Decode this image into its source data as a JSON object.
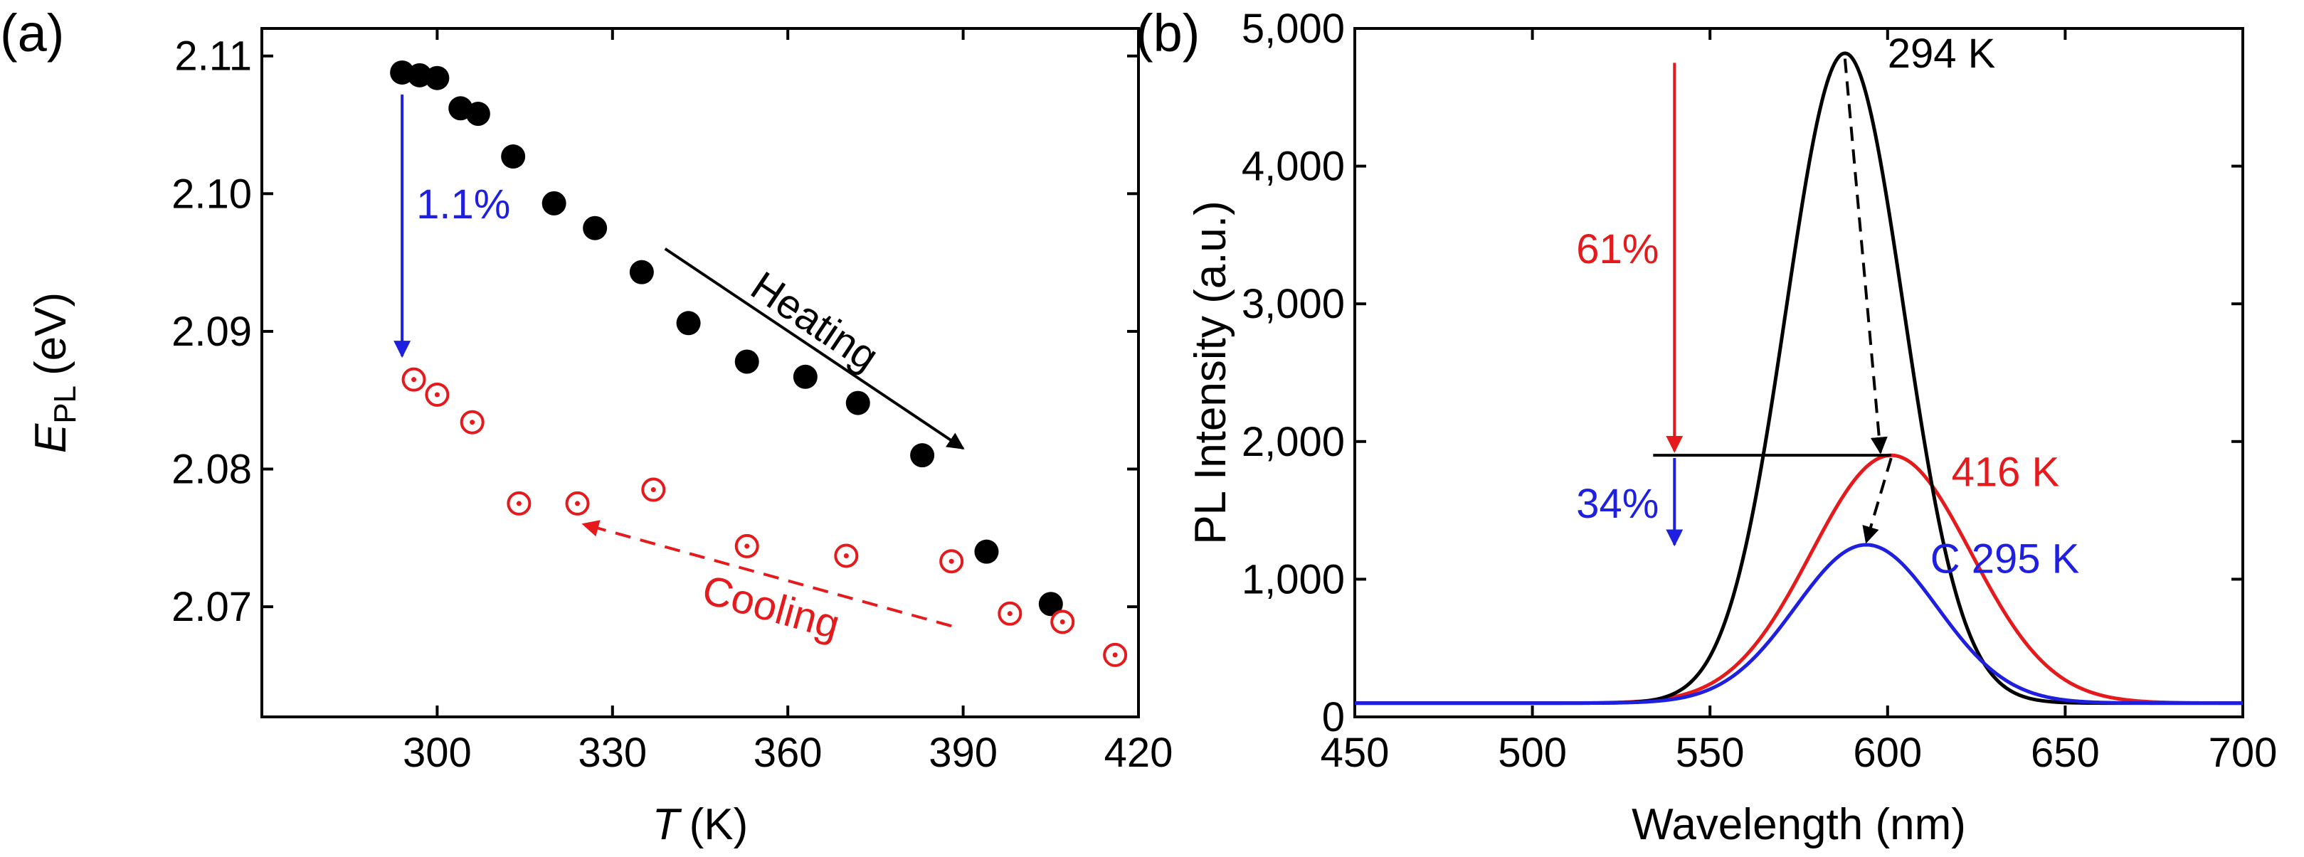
{
  "chart_data": [
    {
      "panel": "(a)",
      "type": "scatter",
      "xlabel": "T",
      "xlabel_unit": "(K)",
      "ylabel": "E",
      "ylabel_sub": "PL",
      "ylabel_unit": "(eV)",
      "xlim": [
        270,
        420
      ],
      "ylim": [
        2.062,
        2.112
      ],
      "xticks": [
        "300",
        "330",
        "360",
        "390",
        "420"
      ],
      "xtick_values": [
        300,
        330,
        360,
        390,
        420
      ],
      "yticks": [
        "2.07",
        "2.08",
        "2.09",
        "2.10",
        "2.11"
      ],
      "ytick_values": [
        2.07,
        2.08,
        2.09,
        2.1,
        2.11
      ],
      "series": [
        {
          "name": "Heating",
          "marker": "filled-circle",
          "color": "#000000",
          "x": [
            294,
            297,
            300,
            304,
            307,
            313,
            320,
            327,
            335,
            343,
            353,
            363,
            372,
            383,
            394,
            405
          ],
          "y": [
            2.1088,
            2.1086,
            2.1084,
            2.1062,
            2.1058,
            2.1027,
            2.0993,
            2.0975,
            2.0943,
            2.0906,
            2.0878,
            2.0867,
            2.0848,
            2.081,
            2.074,
            2.0702
          ]
        },
        {
          "name": "Cooling",
          "marker": "open-circle-dot",
          "color": "#e41a1c",
          "x": [
            296,
            300,
            306,
            314,
            324,
            337,
            353,
            370,
            388,
            398,
            407,
            416
          ],
          "y": [
            2.0865,
            2.0854,
            2.0834,
            2.0775,
            2.0775,
            2.0785,
            2.0744,
            2.0737,
            2.0733,
            2.0695,
            2.0689,
            2.0665
          ]
        }
      ],
      "annotations": [
        {
          "text": "1.1%",
          "color": "#1f1fe0",
          "arrow_from": [
            294,
            2.1072
          ],
          "arrow_to": [
            294,
            2.0882
          ]
        },
        {
          "text": "Heating",
          "color": "#000000",
          "arrow_from": [
            339,
            2.096
          ],
          "arrow_to": [
            390,
            2.0815
          ]
        },
        {
          "text": "Cooling",
          "color": "#e41a1c",
          "arrow_from": [
            388,
            2.0686
          ],
          "arrow_to": [
            325,
            2.076
          ]
        }
      ]
    },
    {
      "panel": "(b)",
      "type": "line",
      "xlabel": "Wavelength (nm)",
      "ylabel": "PL Intensity (a.u.)",
      "xlim": [
        450,
        700
      ],
      "ylim": [
        0,
        5000
      ],
      "xticks": [
        "450",
        "500",
        "550",
        "600",
        "650",
        "700"
      ],
      "xtick_values": [
        450,
        500,
        550,
        600,
        650,
        700
      ],
      "yticks": [
        "0",
        "1,000",
        "2,000",
        "3,000",
        "4,000",
        "5,000"
      ],
      "ytick_values": [
        0,
        1000,
        2000,
        3000,
        4000,
        5000
      ],
      "baseline": 100,
      "series": [
        {
          "name": "294 K",
          "color": "#000000",
          "peak_nm": 588,
          "peak_intensity": 4820,
          "fwhm_nm": 39
        },
        {
          "name": "416 K",
          "color": "#e41a1c",
          "peak_nm": 601,
          "peak_intensity": 1900,
          "fwhm_nm": 53
        },
        {
          "name": "C 295 K",
          "color": "#1f1fe0",
          "peak_nm": 594,
          "peak_intensity": 1250,
          "fwhm_nm": 47
        }
      ],
      "annotations": [
        {
          "text": "61%",
          "color": "#e41a1c",
          "arrow_from": [
            540,
            4750
          ],
          "arrow_to": [
            540,
            1930
          ]
        },
        {
          "text": "34%",
          "color": "#1f1fe0",
          "arrow_from": [
            540,
            1880
          ],
          "arrow_to": [
            540,
            1250
          ]
        },
        {
          "text": "",
          "color": "#000000",
          "reference_line_from": [
            534,
            1900
          ],
          "reference_line_to": [
            601,
            1900
          ]
        },
        {
          "text": "",
          "color": "#000000",
          "dashed_arrow_from": [
            588,
            4780
          ],
          "dashed_arrow_to": [
            598,
            1920
          ]
        },
        {
          "text": "",
          "color": "#000000",
          "dashed_arrow_from": [
            601,
            1880
          ],
          "dashed_arrow_to": [
            594,
            1270
          ]
        }
      ]
    }
  ]
}
